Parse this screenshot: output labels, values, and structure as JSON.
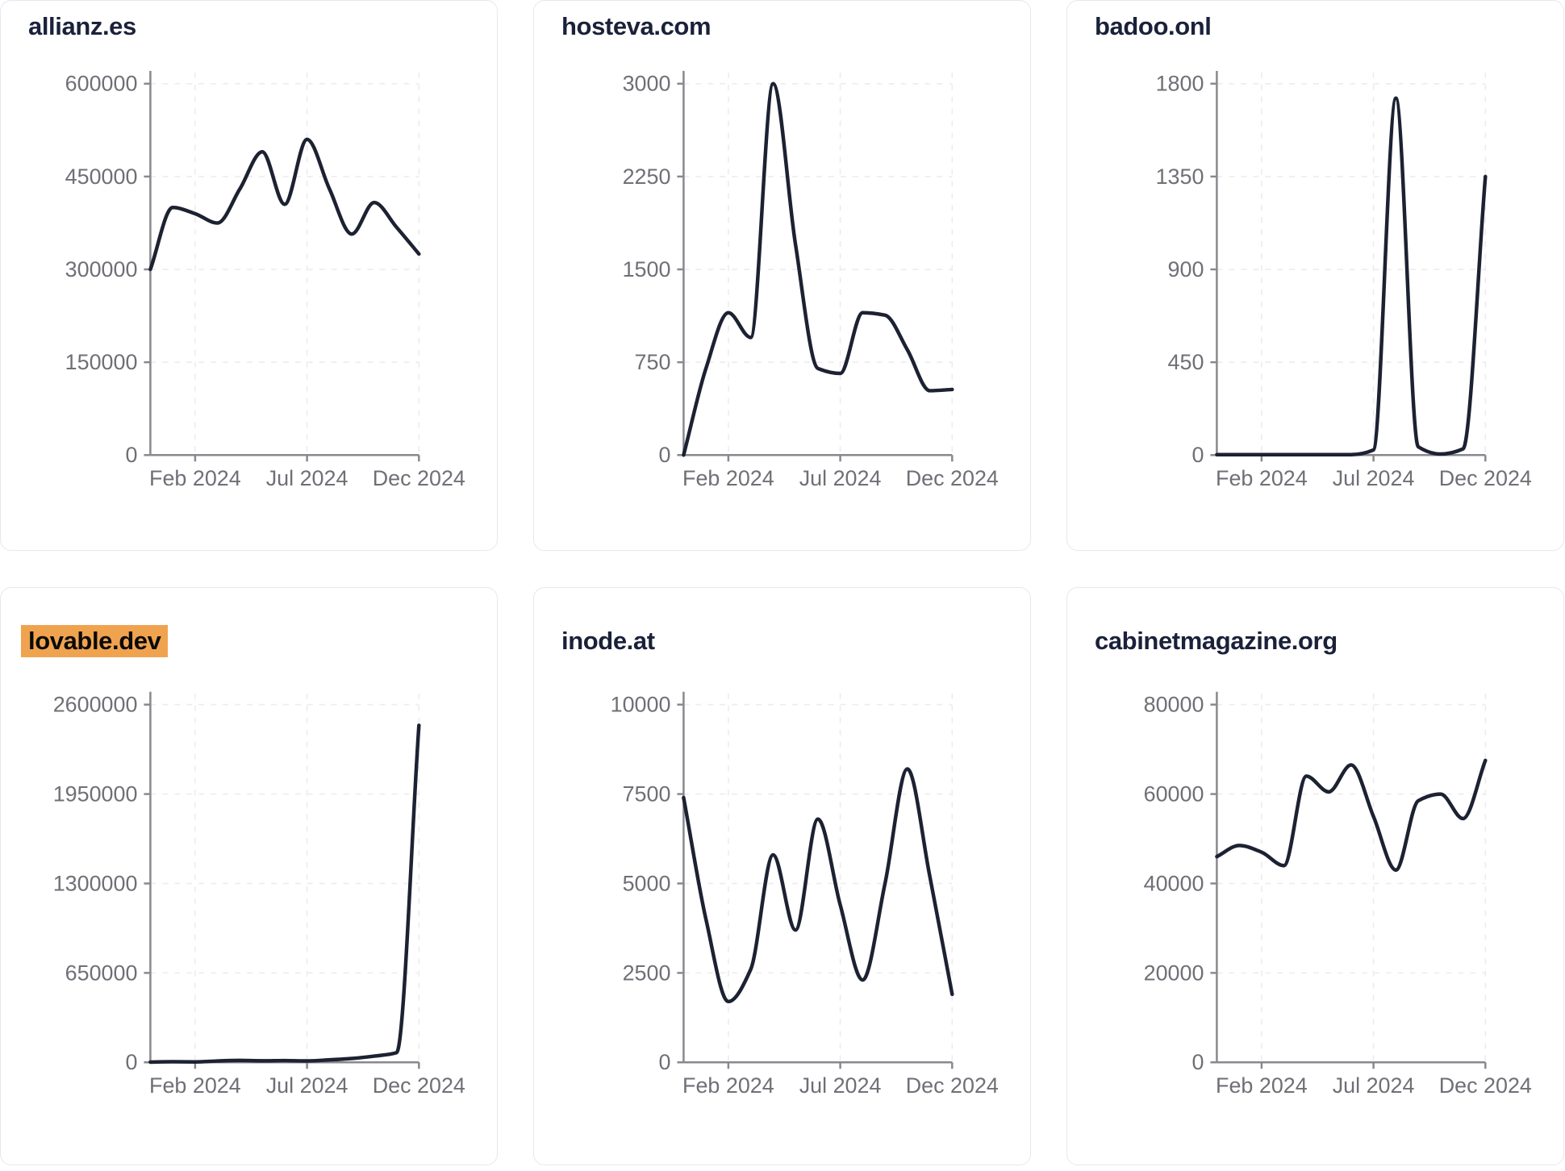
{
  "x_tick_labels": [
    "Feb 2024",
    "Jul 2024",
    "Dec 2024"
  ],
  "colors": {
    "line": "#1c2232",
    "title": "#1a2139",
    "tick_label": "#6f6f76",
    "axis": "#88888e",
    "grid": "#ececf0",
    "card_border": "#e6e8f0",
    "highlight": "#f0a34f",
    "card_background": "#ffffff"
  },
  "chart_data": [
    {
      "type": "line",
      "title": "allianz.es",
      "highlighted": false,
      "ylim": [
        0,
        600000
      ],
      "y_tick_labels": [
        "0",
        "150000",
        "300000",
        "450000",
        "600000"
      ],
      "x_tick_labels": [
        "Feb 2024",
        "Jul 2024",
        "Dec 2024"
      ],
      "grid": "dashed",
      "legend": "none",
      "values": [
        300000,
        400000,
        390000,
        375000,
        430000,
        490000,
        405000,
        510000,
        430000,
        357000,
        408000,
        368000,
        325000
      ]
    },
    {
      "type": "line",
      "title": "hosteva.com",
      "highlighted": false,
      "ylim": [
        0,
        3000
      ],
      "y_tick_labels": [
        "0",
        "750",
        "1500",
        "2250",
        "3000"
      ],
      "x_tick_labels": [
        "Feb 2024",
        "Jul 2024",
        "Dec 2024"
      ],
      "grid": "dashed",
      "legend": "none",
      "values": [
        0,
        700,
        1150,
        950,
        3000,
        1700,
        700,
        660,
        1150,
        1130,
        850,
        520,
        530
      ]
    },
    {
      "type": "line",
      "title": "badoo.onl",
      "highlighted": false,
      "ylim": [
        0,
        1800
      ],
      "y_tick_labels": [
        "0",
        "450",
        "900",
        "1350",
        "1800"
      ],
      "x_tick_labels": [
        "Feb 2024",
        "Jul 2024",
        "Dec 2024"
      ],
      "grid": "dashed",
      "legend": "none",
      "values": [
        2,
        2,
        2,
        2,
        2,
        2,
        2,
        25,
        1730,
        40,
        5,
        30,
        1350
      ]
    },
    {
      "type": "line",
      "title": "lovable.dev",
      "highlighted": true,
      "ylim": [
        0,
        2600000
      ],
      "y_tick_labels": [
        "0",
        "650000",
        "1300000",
        "1950000",
        "2600000"
      ],
      "x_tick_labels": [
        "Feb 2024",
        "Jul 2024",
        "Dec 2024"
      ],
      "grid": "dashed",
      "legend": "none",
      "values": [
        2000,
        4000,
        3000,
        10000,
        14000,
        11000,
        13000,
        10000,
        18000,
        28000,
        45000,
        70000,
        2450000
      ]
    },
    {
      "type": "line",
      "title": "inode.at",
      "highlighted": false,
      "ylim": [
        0,
        10000
      ],
      "y_tick_labels": [
        "0",
        "2500",
        "5000",
        "7500",
        "10000"
      ],
      "x_tick_labels": [
        "Feb 2024",
        "Jul 2024",
        "Dec 2024"
      ],
      "grid": "dashed",
      "legend": "none",
      "values": [
        7400,
        4000,
        1700,
        2600,
        5800,
        3700,
        6800,
        4400,
        2300,
        5000,
        8200,
        5200,
        1900
      ]
    },
    {
      "type": "line",
      "title": "cabinetmagazine.org",
      "highlighted": false,
      "ylim": [
        0,
        80000
      ],
      "y_tick_labels": [
        "0",
        "20000",
        "40000",
        "60000",
        "80000"
      ],
      "x_tick_labels": [
        "Feb 2024",
        "Jul 2024",
        "Dec 2024"
      ],
      "grid": "dashed",
      "legend": "none",
      "values": [
        46000,
        48500,
        47000,
        44000,
        64000,
        60500,
        66500,
        55000,
        43000,
        58500,
        60000,
        54500,
        67500
      ]
    }
  ]
}
